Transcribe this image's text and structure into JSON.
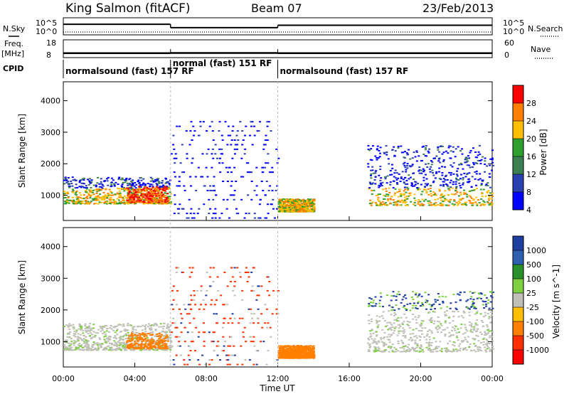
{
  "header": {
    "station": "King Salmon (fitACF)",
    "beam": "Beam 07",
    "date": "23/Feb/2013"
  },
  "status_panels": {
    "nsky_label": "N.Sky",
    "nsearch_label": "N.Search",
    "nsky_ticks": [
      "10^5",
      "10^0"
    ],
    "nsearch_ticks": [
      "10^5",
      "10^0"
    ],
    "freq_label": "Freq.",
    "freq_unit": "[MHz]",
    "freq_ticks": [
      "18",
      "8"
    ],
    "nave_label": "Nave",
    "nave_ticks": [
      "60",
      "0"
    ],
    "cpid_label": "CPID",
    "cpid_segments": [
      {
        "label": "normalsound (fast) 157 RF",
        "start_hour": 0,
        "end_hour": 6
      },
      {
        "label": "normal (fast) 151 RF",
        "start_hour": 6,
        "end_hour": 12
      },
      {
        "label": "normalsound (fast) 157 RF",
        "start_hour": 12,
        "end_hour": 24
      }
    ],
    "freq_level_mhz": {
      "segments": [
        10.5,
        10.6,
        10.5
      ]
    },
    "nsky_level": {
      "segments": [
        0.62,
        0.42,
        0.56
      ]
    }
  },
  "chart_data": [
    {
      "type": "heatmap",
      "name": "power",
      "ylabel": "Slant Range [km]",
      "ylim": [
        200,
        4600
      ],
      "yticks": [
        1000,
        2000,
        3000,
        4000
      ],
      "xlim": [
        0,
        24
      ],
      "colorbar": {
        "label": "Power [dB]",
        "ticks": [
          "28",
          "24",
          "20",
          "16",
          "12",
          "8",
          "4"
        ],
        "colors": [
          "#ff0000",
          "#ff7f00",
          "#ffbf00",
          "#2f9f2f",
          "#3c7f50",
          "#2a3fb0",
          "#0000ff"
        ]
      },
      "regions": [
        {
          "t0": 0.0,
          "t1": 6.0,
          "r0": 750,
          "r1": 1600,
          "level": "high"
        },
        {
          "t0": 3.5,
          "t1": 5.8,
          "r0": 800,
          "r1": 1300,
          "level": "peak"
        },
        {
          "t0": 6.0,
          "t1": 12.0,
          "r0": 300,
          "r1": 3500,
          "level": "sparse"
        },
        {
          "t0": 12.0,
          "t1": 14.0,
          "r0": 500,
          "r1": 900,
          "level": "high"
        },
        {
          "t0": 17.0,
          "t1": 24.0,
          "r0": 700,
          "r1": 2600,
          "level": "mid"
        }
      ]
    },
    {
      "type": "heatmap",
      "name": "velocity",
      "ylabel": "Slant Range [km]",
      "ylim": [
        200,
        4600
      ],
      "yticks": [
        1000,
        2000,
        3000,
        4000
      ],
      "xlim": [
        0,
        24
      ],
      "colorbar": {
        "label": "Velocity [m s^-1]",
        "ticks": [
          "1000",
          "500",
          "100",
          "25",
          "-25",
          "-100",
          "-500",
          "-1000"
        ],
        "colors": [
          "#1f3fa0",
          "#2f5fb0",
          "#2a8f2a",
          "#7fd040",
          "#c0c0b8",
          "#ffbf00",
          "#ff7f00",
          "#ff3000",
          "#ff0000"
        ]
      },
      "xlabel": "Time UT",
      "xticks": [
        "00:00",
        "04:00",
        "08:00",
        "12:00",
        "16:00",
        "20:00",
        "00:00"
      ]
    }
  ]
}
